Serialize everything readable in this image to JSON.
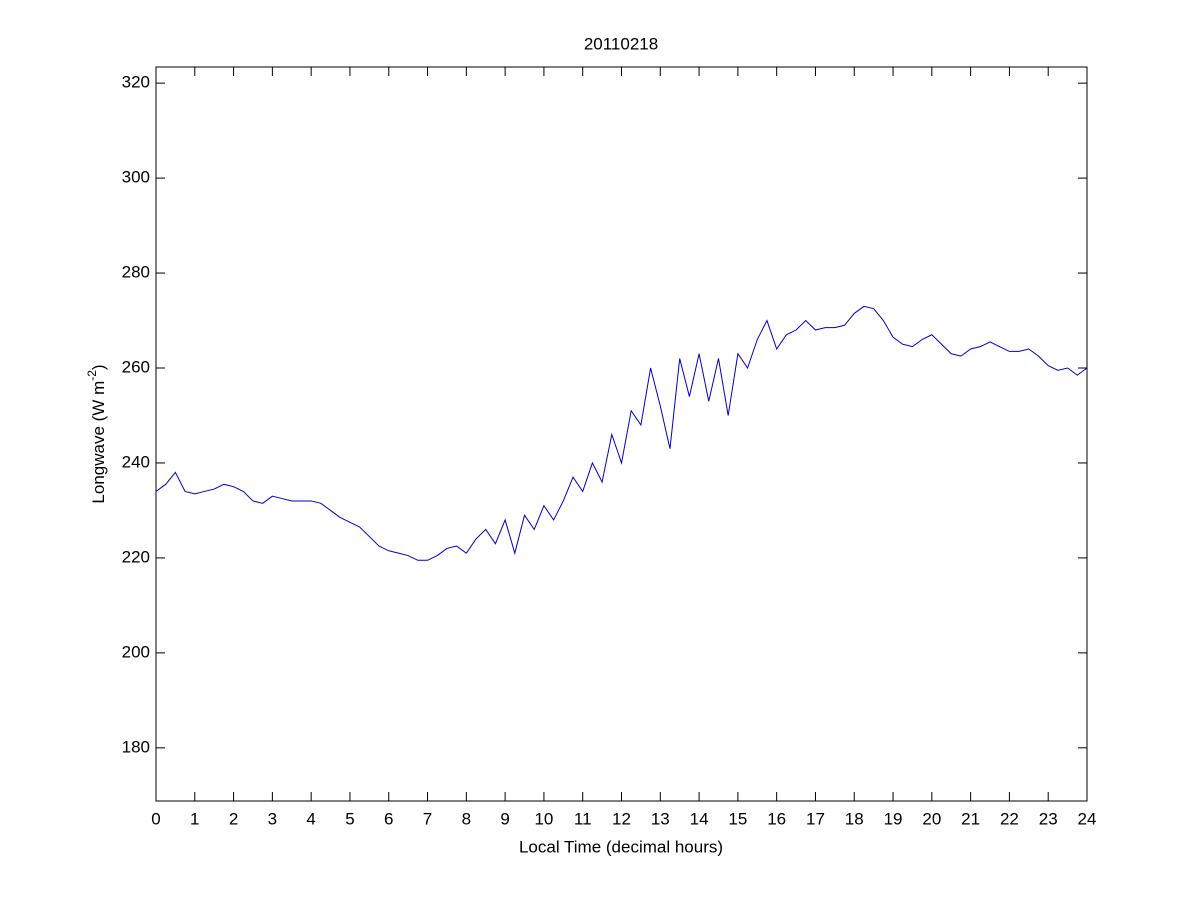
{
  "chart_data": {
    "type": "line",
    "title": "20110218",
    "x_label": "Local Time (decimal hours)",
    "y_label": {
      "text": "Longwave (W m",
      "superscript": "-2",
      "suffix": ")"
    },
    "x": [
      0,
      0.25,
      0.5,
      0.75,
      1,
      1.25,
      1.5,
      1.75,
      2,
      2.25,
      2.5,
      2.75,
      3,
      3.25,
      3.5,
      3.75,
      4,
      4.25,
      4.5,
      4.75,
      5,
      5.25,
      5.5,
      5.75,
      6,
      6.25,
      6.5,
      6.75,
      7,
      7.25,
      7.5,
      7.75,
      8,
      8.25,
      8.5,
      8.75,
      9,
      9.25,
      9.5,
      9.75,
      10,
      10.25,
      10.5,
      10.75,
      11,
      11.25,
      11.5,
      11.75,
      12,
      12.25,
      12.5,
      12.75,
      13,
      13.25,
      13.5,
      13.75,
      14,
      14.25,
      14.5,
      14.75,
      15,
      15.25,
      15.5,
      15.75,
      16,
      16.25,
      16.5,
      16.75,
      17,
      17.25,
      17.5,
      17.75,
      18,
      18.25,
      18.5,
      18.75,
      19,
      19.25,
      19.5,
      19.75,
      20,
      20.25,
      20.5,
      20.75,
      21,
      21.25,
      21.5,
      21.75,
      22,
      22.25,
      22.5,
      22.75,
      23,
      23.25,
      23.5,
      23.75,
      24
    ],
    "series": [
      {
        "color": "#0000cc",
        "values": [
          234,
          235.5,
          238,
          234,
          233.5,
          234,
          234.5,
          235.5,
          235,
          234,
          232,
          231.5,
          233,
          232.5,
          232,
          232,
          232,
          231.5,
          230,
          228.5,
          227.5,
          226.5,
          224.5,
          222.5,
          221.5,
          221,
          220.5,
          219.5,
          219.5,
          220.5,
          222,
          222.5,
          221,
          224,
          226,
          223,
          228,
          221,
          229,
          226,
          231,
          228,
          232,
          237,
          234,
          240,
          236,
          246,
          240,
          251,
          248,
          260,
          252,
          243,
          262,
          254,
          263,
          253,
          262,
          250,
          263,
          260,
          266,
          270,
          264,
          267,
          268,
          270,
          268,
          268.5,
          268.5,
          269,
          271.5,
          273,
          272.5,
          270,
          266.5,
          265,
          264.5,
          266,
          267,
          265,
          263,
          262.5,
          264,
          264.5,
          265.5,
          264.5,
          263.5,
          263.5,
          264,
          262.5,
          260.5,
          259.5,
          260,
          258.5,
          260
        ]
      }
    ],
    "xlim": [
      0,
      24
    ],
    "ylim": [
      168.8,
      323.4
    ],
    "xticks": [
      0,
      1,
      2,
      3,
      4,
      5,
      6,
      7,
      8,
      9,
      10,
      11,
      12,
      13,
      14,
      15,
      16,
      17,
      18,
      19,
      20,
      21,
      22,
      23,
      24
    ],
    "yticks": [
      180,
      200,
      220,
      240,
      260,
      280,
      300,
      320
    ]
  }
}
